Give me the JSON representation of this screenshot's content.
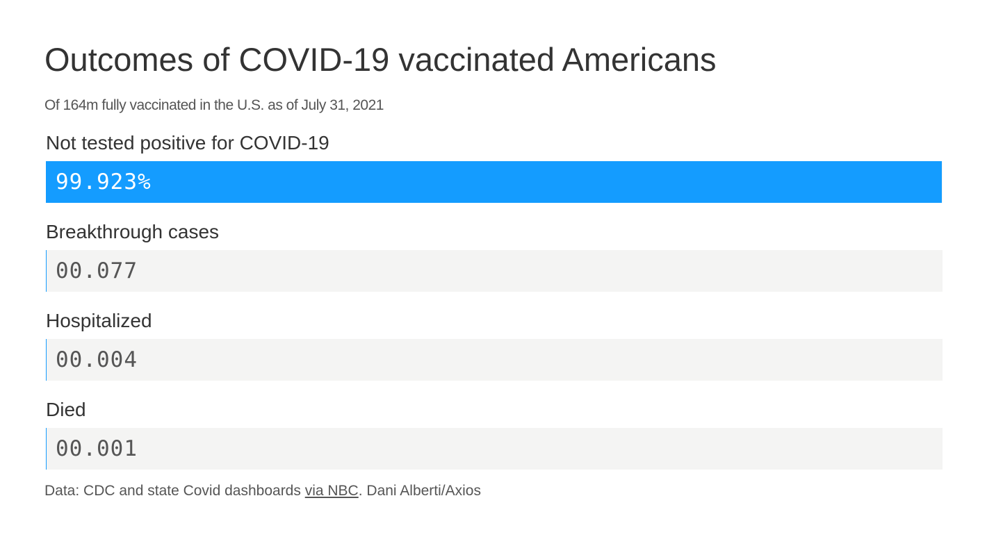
{
  "title": "Outcomes of COVID-19 vaccinated Americans",
  "subtitle": "Of 164m fully vaccinated in the U.S. as of July 31, 2021",
  "colors": {
    "fill": "#149cff",
    "track": "#f4f4f3",
    "text": "#333333",
    "muted": "#555555"
  },
  "chart_data": {
    "type": "bar",
    "orientation": "horizontal",
    "unit": "%",
    "xlim": [
      0,
      100
    ],
    "categories": [
      "Not tested positive for COVID-19",
      "Breakthrough cases",
      "Hospitalized",
      "Died"
    ],
    "values": [
      99.923,
      0.077,
      0.004,
      0.001
    ],
    "value_labels": [
      "99.923%",
      "00.077",
      "00.004",
      "00.001"
    ]
  },
  "source": {
    "prefix": "Data: CDC and state Covid dashboards ",
    "link_text": "via NBC",
    "suffix": ". Dani Alberti/Axios"
  }
}
